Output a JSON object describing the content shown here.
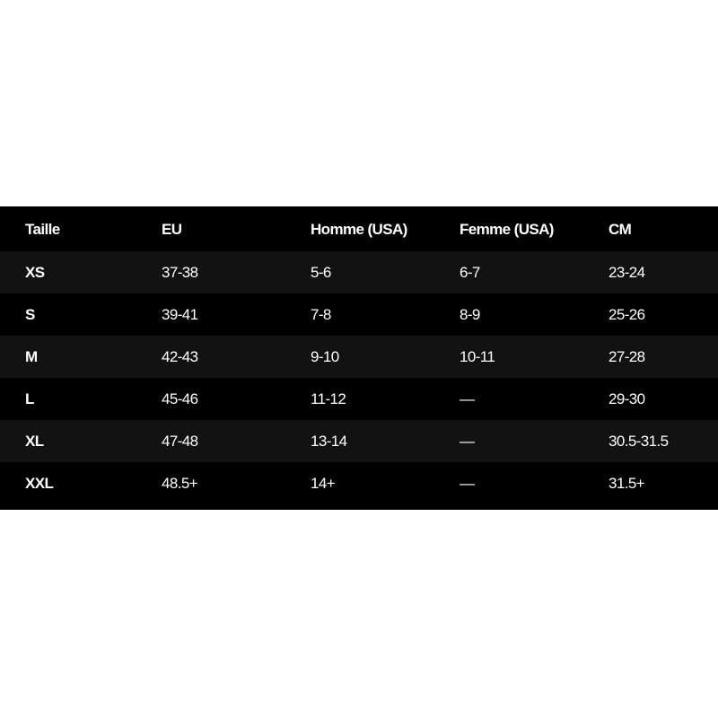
{
  "headers": [
    "Taille",
    "EU",
    "Homme (USA)",
    "Femme (USA)",
    "CM"
  ],
  "rows": [
    [
      "XS",
      "37-38",
      "5-6",
      "6-7",
      "23-24"
    ],
    [
      "S",
      "39-41",
      "7-8",
      "8-9",
      "25-26"
    ],
    [
      "M",
      "42-43",
      "9-10",
      "10-11",
      "27-28"
    ],
    [
      "L",
      "45-46",
      "11-12",
      "—",
      "29-30"
    ],
    [
      "XL",
      "47-48",
      "13-14",
      "—",
      "30.5-31.5"
    ],
    [
      "XXL",
      "48.5+",
      "14+",
      "—",
      "31.5+"
    ]
  ],
  "colors": {
    "background": "#000000",
    "alt_row": "#121212",
    "text": "#ffffff"
  }
}
